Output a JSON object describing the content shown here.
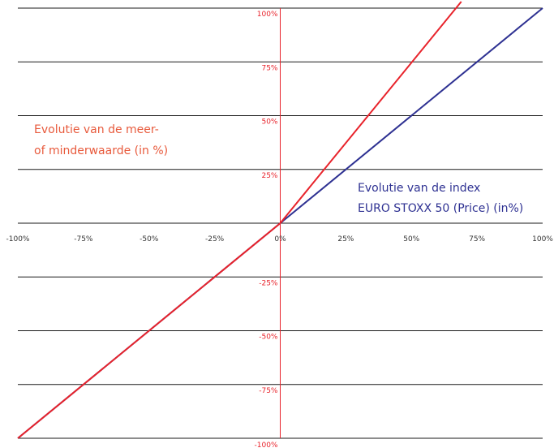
{
  "chart_data": {
    "type": "line",
    "title": "",
    "xlabel": "",
    "ylabel": "",
    "xlim": [
      -100,
      100
    ],
    "ylim": [
      -100,
      100
    ],
    "grid": "horizontal",
    "x_tick_values": [
      -100,
      -75,
      -50,
      -25,
      0,
      25,
      50,
      75,
      100
    ],
    "x_tick_labels": [
      "-100%",
      "-75%",
      "-50%",
      "-25%",
      "0%",
      "25%",
      "50%",
      "75%",
      "100%"
    ],
    "y_tick_values": [
      100,
      75,
      50,
      25,
      -25,
      -50,
      -75,
      -100
    ],
    "y_tick_labels": [
      "100%",
      "75%",
      "50%",
      "25%",
      "-25%",
      "-50%",
      "-75%",
      "-100%"
    ],
    "series": [
      {
        "color": "#2e3192",
        "x": [
          -100,
          0,
          100
        ],
        "y": [
          -100,
          0,
          100
        ]
      },
      {
        "color": "#e8232b",
        "x": [
          -100,
          0,
          69
        ],
        "y": [
          -100,
          0,
          103
        ]
      }
    ],
    "annotations": [
      {
        "id": "red",
        "color": "#e85a3c",
        "lines": [
          "Evolutie van de meer-",
          "of minderwaarde (in %)"
        ]
      },
      {
        "id": "blue",
        "color": "#2e3192",
        "lines": [
          "Evolutie van de index",
          "EURO STOXX 50 (Price) (in%)"
        ]
      }
    ],
    "colors": {
      "axis": "#e8232b",
      "grid": "#1a1a1a",
      "ytick": "#e8232b",
      "xtick": "#333333"
    }
  }
}
